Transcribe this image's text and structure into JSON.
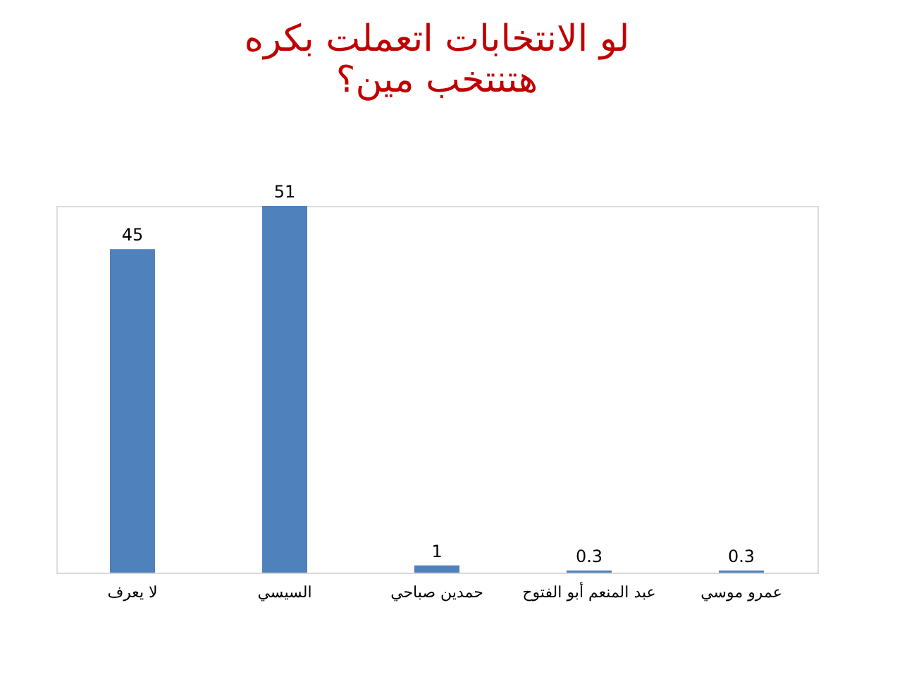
{
  "chart_data": {
    "type": "bar",
    "title": "لو الانتخابات اتعملت بكره",
    "subtitle": "هتنتخب مين؟",
    "categories": [
      "لا يعرف",
      "السيسي",
      "حمدين صباحي",
      "عبد المنعم أبو الفتوح",
      "عمرو موسي"
    ],
    "values": [
      45,
      51,
      1,
      0.3,
      0.3
    ],
    "color": "#4f81bd",
    "data_labels": true,
    "grid": false
  }
}
